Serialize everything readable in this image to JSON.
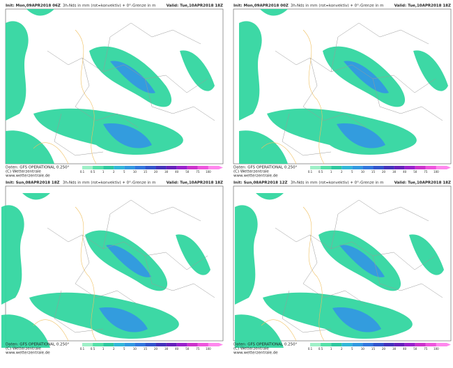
{
  "panels": [
    {
      "init": "Init: Mon,09APR2018 06Z",
      "title": "3h-Nds in mm (rot=konvektiv) + 0°-Grenze in m",
      "valid": "Valid: Tue,10APR2018 18Z"
    },
    {
      "init": "Init: Mon,09APR2018 00Z",
      "title": "3h-Nds in mm (rot=konvektiv) + 0°-Grenze in m",
      "valid": "Valid: Tue,10APR2018 18Z"
    },
    {
      "init": "Init: Sun,08APR2018 18Z",
      "title": "3h-Nds in mm (rot=konvektiv) + 0°-Grenze in m",
      "valid": "Valid: Tue,10APR2018 18Z"
    },
    {
      "init": "Init: Sun,08APR2018 12Z",
      "title": "3h-Nds in mm (rot=konvektiv) + 0°-Grenze in m",
      "valid": "Valid: Tue,10APR2018 18Z"
    }
  ],
  "footer": {
    "source": "Daten: GFS OPERATIONAL 0.250°",
    "copyright": "(C) Wetterzentrale",
    "url": "www.wetterzentrale.de"
  },
  "colorbar": [
    "0.1",
    "0.5",
    "1",
    "2",
    "5",
    "10",
    "15",
    "20",
    "30",
    "40",
    "50",
    "75",
    "100"
  ]
}
